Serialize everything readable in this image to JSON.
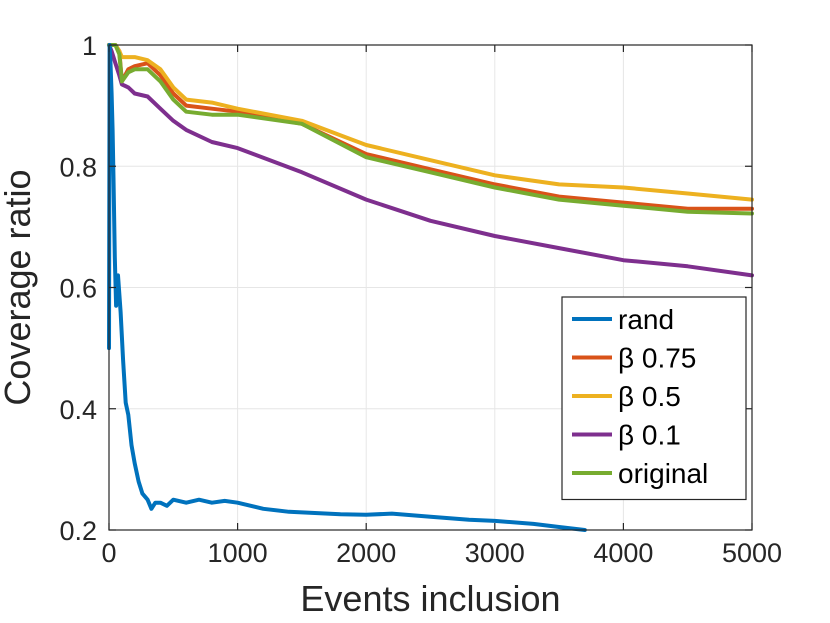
{
  "chart_data": {
    "type": "line",
    "title": "",
    "xlabel": "Events inclusion",
    "ylabel": "Coverage ratio",
    "xlim": [
      0,
      5000
    ],
    "ylim": [
      0.2,
      1.0
    ],
    "xticks": [
      0,
      1000,
      2000,
      3000,
      4000,
      5000
    ],
    "xtick_labels": [
      "0",
      "1000",
      "2000",
      "3000",
      "4000",
      "5000"
    ],
    "yticks": [
      0.2,
      0.4,
      0.6,
      0.8,
      1.0
    ],
    "ytick_labels": [
      "0.2",
      "0.4",
      "0.6",
      "0.8",
      "1"
    ],
    "grid": true,
    "legend_position": "right",
    "series": [
      {
        "name": "rand",
        "color": "#0072BD",
        "x": [
          0,
          5,
          12,
          20,
          28,
          35,
          45,
          55,
          70,
          90,
          110,
          130,
          150,
          175,
          200,
          230,
          260,
          300,
          330,
          360,
          400,
          450,
          500,
          600,
          700,
          800,
          900,
          1000,
          1200,
          1400,
          1600,
          1800,
          2000,
          2200,
          2500,
          2800,
          3000,
          3300,
          3500,
          3700
        ],
        "values": [
          0.5,
          1.0,
          0.97,
          0.92,
          0.86,
          0.78,
          0.65,
          0.57,
          0.62,
          0.56,
          0.48,
          0.41,
          0.39,
          0.34,
          0.31,
          0.28,
          0.26,
          0.25,
          0.235,
          0.245,
          0.245,
          0.24,
          0.25,
          0.245,
          0.25,
          0.245,
          0.248,
          0.245,
          0.235,
          0.23,
          0.228,
          0.226,
          0.225,
          0.227,
          0.222,
          0.217,
          0.215,
          0.21,
          0.205,
          0.2
        ]
      },
      {
        "name": "β 0.75",
        "color": "#D95319",
        "x": [
          0,
          20,
          50,
          80,
          100,
          150,
          200,
          300,
          400,
          500,
          600,
          800,
          1000,
          1500,
          2000,
          2500,
          3000,
          3500,
          4000,
          4500,
          5000
        ],
        "values": [
          1.0,
          1.0,
          1.0,
          0.99,
          0.94,
          0.96,
          0.965,
          0.97,
          0.95,
          0.92,
          0.9,
          0.895,
          0.89,
          0.87,
          0.82,
          0.795,
          0.77,
          0.75,
          0.74,
          0.73,
          0.73
        ]
      },
      {
        "name": "β 0.5",
        "color": "#EDB120",
        "x": [
          0,
          20,
          50,
          80,
          100,
          150,
          200,
          300,
          400,
          500,
          600,
          800,
          1000,
          1500,
          2000,
          2500,
          3000,
          3500,
          4000,
          4500,
          5000
        ],
        "values": [
          1.0,
          1.0,
          1.0,
          0.99,
          0.98,
          0.98,
          0.98,
          0.975,
          0.96,
          0.93,
          0.91,
          0.905,
          0.895,
          0.875,
          0.835,
          0.81,
          0.785,
          0.77,
          0.765,
          0.755,
          0.745
        ]
      },
      {
        "name": "β 0.1",
        "color": "#7E2F8E",
        "x": [
          0,
          20,
          50,
          80,
          100,
          150,
          200,
          300,
          400,
          500,
          600,
          800,
          1000,
          1500,
          2000,
          2500,
          3000,
          3500,
          4000,
          4500,
          5000
        ],
        "values": [
          1.0,
          0.99,
          0.97,
          0.95,
          0.935,
          0.93,
          0.92,
          0.915,
          0.895,
          0.875,
          0.86,
          0.84,
          0.83,
          0.79,
          0.745,
          0.71,
          0.685,
          0.665,
          0.645,
          0.635,
          0.62
        ]
      },
      {
        "name": "original",
        "color": "#77AC30",
        "x": [
          0,
          20,
          50,
          80,
          100,
          150,
          200,
          300,
          400,
          500,
          600,
          800,
          1000,
          1500,
          2000,
          2500,
          3000,
          3500,
          4000,
          4500,
          5000
        ],
        "values": [
          1.0,
          1.0,
          1.0,
          0.985,
          0.94,
          0.955,
          0.96,
          0.96,
          0.94,
          0.91,
          0.89,
          0.885,
          0.885,
          0.87,
          0.815,
          0.79,
          0.765,
          0.745,
          0.735,
          0.725,
          0.722
        ]
      }
    ]
  }
}
